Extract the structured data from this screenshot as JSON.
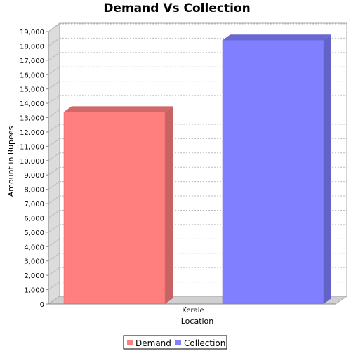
{
  "chart_data": {
    "type": "bar",
    "title": "Demand Vs Collection",
    "xlabel": "Location",
    "ylabel": "Amount in Rupees",
    "categories": [
      "Kerale"
    ],
    "series": [
      {
        "name": "Demand",
        "values": [
          13400
        ],
        "color": "#ff7f7f"
      },
      {
        "name": "Collection",
        "values": [
          18400
        ],
        "color": "#7f7fff"
      }
    ],
    "ylim": [
      0,
      19000
    ],
    "yticks": [
      0,
      1000,
      2000,
      3000,
      4000,
      5000,
      6000,
      7000,
      8000,
      9000,
      10000,
      11000,
      12000,
      13000,
      14000,
      15000,
      16000,
      17000,
      18000,
      19000
    ],
    "ytick_labels": [
      "0",
      "1,000",
      "2,000",
      "3,000",
      "4,000",
      "5,000",
      "6,000",
      "7,000",
      "8,000",
      "9,000",
      "10,000",
      "11,000",
      "12,000",
      "13,000",
      "14,000",
      "15,000",
      "16,000",
      "17,000",
      "18,000",
      "19,000"
    ],
    "grid": true,
    "style": "3d",
    "legend_position": "bottom"
  }
}
